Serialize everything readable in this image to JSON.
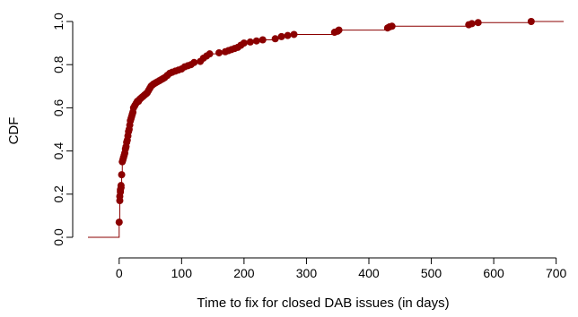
{
  "chart_data": {
    "type": "scatter",
    "subtype": "step-cdf",
    "title": "",
    "xlabel": "Time to fix for closed DAB issues (in days)",
    "ylabel": "CDF",
    "xlim": [
      -50,
      712
    ],
    "ylim": [
      0,
      1.0
    ],
    "x_ticks": [
      0,
      100,
      200,
      300,
      400,
      500,
      600,
      700
    ],
    "y_ticks": [
      0.0,
      0.2,
      0.4,
      0.6,
      0.8,
      1.0
    ],
    "x_tick_labels": [
      "0",
      "100",
      "200",
      "300",
      "400",
      "500",
      "600",
      "700"
    ],
    "y_tick_labels": [
      "0.0",
      "0.2",
      "0.4",
      "0.6",
      "0.8",
      "1.0"
    ],
    "grid": false,
    "legend": "none",
    "series": [
      {
        "color": "#8b0000",
        "x": [
          0,
          1,
          1,
          2,
          2,
          3,
          3,
          4,
          5,
          6,
          7,
          8,
          9,
          10,
          11,
          12,
          13,
          14,
          15,
          16,
          17,
          18,
          19,
          20,
          21,
          22,
          23,
          25,
          27,
          29,
          31,
          33,
          35,
          37,
          39,
          41,
          43,
          45,
          47,
          49,
          51,
          53,
          55,
          58,
          61,
          64,
          67,
          70,
          73,
          77,
          81,
          85,
          90,
          95,
          100,
          105,
          110,
          115,
          120,
          130,
          135,
          140,
          145,
          160,
          170,
          175,
          180,
          185,
          190,
          195,
          200,
          210,
          220,
          230,
          250,
          260,
          270,
          280,
          345,
          350,
          352,
          430,
          433,
          437,
          560,
          565,
          575,
          660
        ],
        "y": [
          0.07,
          0.17,
          0.19,
          0.21,
          0.22,
          0.23,
          0.24,
          0.29,
          0.35,
          0.36,
          0.37,
          0.38,
          0.39,
          0.41,
          0.42,
          0.44,
          0.45,
          0.47,
          0.49,
          0.5,
          0.52,
          0.54,
          0.55,
          0.56,
          0.57,
          0.58,
          0.6,
          0.61,
          0.62,
          0.63,
          0.63,
          0.64,
          0.645,
          0.65,
          0.655,
          0.66,
          0.665,
          0.67,
          0.68,
          0.69,
          0.7,
          0.705,
          0.71,
          0.715,
          0.72,
          0.725,
          0.73,
          0.735,
          0.74,
          0.75,
          0.76,
          0.765,
          0.77,
          0.775,
          0.78,
          0.79,
          0.795,
          0.8,
          0.81,
          0.815,
          0.83,
          0.84,
          0.85,
          0.855,
          0.86,
          0.865,
          0.87,
          0.875,
          0.88,
          0.89,
          0.9,
          0.905,
          0.91,
          0.915,
          0.92,
          0.93,
          0.935,
          0.94,
          0.95,
          0.955,
          0.96,
          0.97,
          0.975,
          0.978,
          0.985,
          0.99,
          0.995,
          1.0
        ]
      }
    ]
  }
}
